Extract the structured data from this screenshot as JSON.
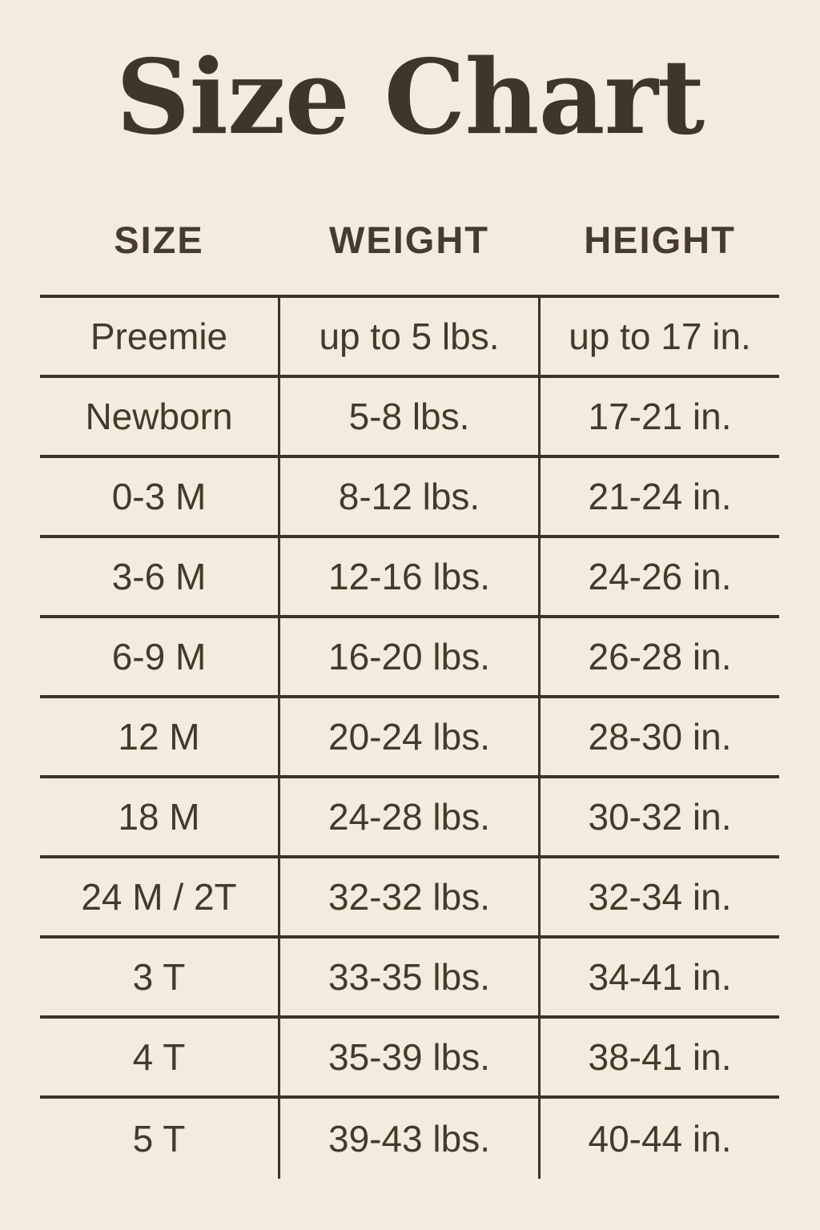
{
  "page": {
    "title": "Size Chart",
    "background_color": "#f2ebde",
    "text_color": "#45392c",
    "line_color": "#3c3226"
  },
  "table": {
    "headers": [
      "SIZE",
      "WEIGHT",
      "HEIGHT"
    ],
    "rows": [
      {
        "size": "Preemie",
        "weight": "up to 5 lbs.",
        "height": "up to 17 in."
      },
      {
        "size": "Newborn",
        "weight": "5-8 lbs.",
        "height": "17-21 in."
      },
      {
        "size": "0-3 M",
        "weight": "8-12 lbs.",
        "height": "21-24 in."
      },
      {
        "size": "3-6 M",
        "weight": "12-16 lbs.",
        "height": "24-26 in."
      },
      {
        "size": "6-9 M",
        "weight": "16-20 lbs.",
        "height": "26-28 in."
      },
      {
        "size": "12 M",
        "weight": "20-24 lbs.",
        "height": "28-30 in."
      },
      {
        "size": "18 M",
        "weight": "24-28 lbs.",
        "height": "30-32 in."
      },
      {
        "size": "24 M / 2T",
        "weight": "32-32 lbs.",
        "height": "32-34 in."
      },
      {
        "size": "3 T",
        "weight": "33-35 lbs.",
        "height": "34-41 in."
      },
      {
        "size": "4 T",
        "weight": "35-39 lbs.",
        "height": "38-41 in."
      },
      {
        "size": "5 T",
        "weight": "39-43 lbs.",
        "height": "40-44 in."
      }
    ]
  }
}
